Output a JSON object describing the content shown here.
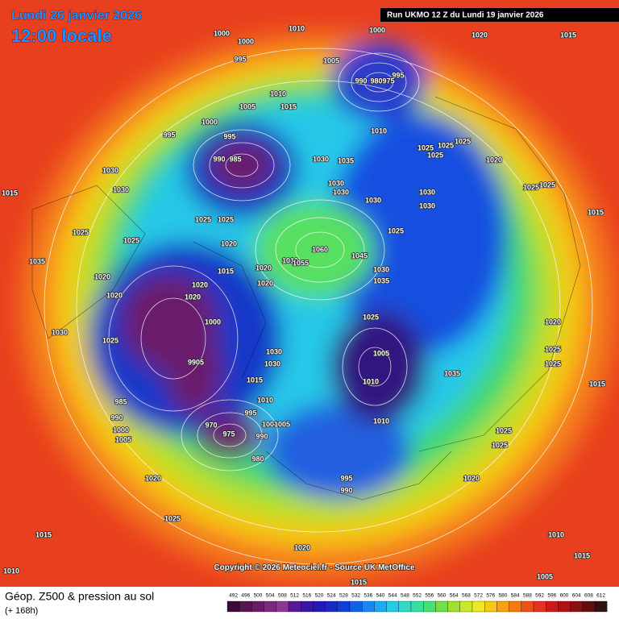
{
  "header": {
    "date": "Lundi 26 janvier 2026",
    "time": "12:00 locale",
    "run": "Run UKMO 12 Z du Lundi 19 janvier 2026"
  },
  "copyright": "Copyright © 2026 Meteociel.fr - Source UK MetOffice",
  "legend": {
    "title": "Géop. Z500 & pression au sol",
    "subtitle": "(+ 168h)",
    "levels": [
      492,
      496,
      500,
      504,
      508,
      512,
      516,
      520,
      524,
      528,
      532,
      536,
      540,
      544,
      548,
      552,
      556,
      560,
      564,
      568,
      572,
      576,
      580,
      584,
      588,
      592,
      596,
      600,
      604,
      608,
      612
    ],
    "colors": [
      "#3c0a36",
      "#561450",
      "#6a1c6a",
      "#7a2a7e",
      "#8a3890",
      "#5a1898",
      "#3a14a8",
      "#2418b8",
      "#1a28c8",
      "#1040d8",
      "#1060e8",
      "#1888f0",
      "#20a8f0",
      "#28c8e8",
      "#30d8c8",
      "#38e0a0",
      "#48e070",
      "#70e048",
      "#a0e030",
      "#c8e828",
      "#f0e820",
      "#f8c818",
      "#f8a010",
      "#f87810",
      "#f05018",
      "#e83020",
      "#d01818",
      "#b01010",
      "#881010",
      "#601010",
      "#301010"
    ]
  },
  "isobar_labels": [
    "1000",
    "1000",
    "1010",
    "1000",
    "1020",
    "1015",
    "995",
    "1005",
    "995",
    "990",
    "980",
    "975",
    "1010",
    "1005",
    "1015",
    "1000",
    "995",
    "995",
    "1010",
    "1025",
    "1025",
    "1025",
    "1025",
    "990",
    "985",
    "1030",
    "1035",
    "1020",
    "1030",
    "1030",
    "1030",
    "1030",
    "1030",
    "1030",
    "1030",
    "1025",
    "1025",
    "1015",
    "1015",
    "1025",
    "1025",
    "1025",
    "1025",
    "1025",
    "1020",
    "1060",
    "1035",
    "1010",
    "1055",
    "1045",
    "1030",
    "1035",
    "1020",
    "1015",
    "1020",
    "1020",
    "1020",
    "1020",
    "1020",
    "1000",
    "1025",
    "1030",
    "1020",
    "1025",
    "1025",
    "1025",
    "1030",
    "1030",
    "1005",
    "9905",
    "1035",
    "1010",
    "1015",
    "1015",
    "1010",
    "985",
    "995",
    "1010",
    "990",
    "1000",
    "1005",
    "970",
    "1000",
    "975",
    "1005",
    "990",
    "1025",
    "1025",
    "980",
    "1020",
    "995",
    "1020",
    "990",
    "1025",
    "1015",
    "1010",
    "1020",
    "1015",
    "1010",
    "1005",
    "1015"
  ]
}
